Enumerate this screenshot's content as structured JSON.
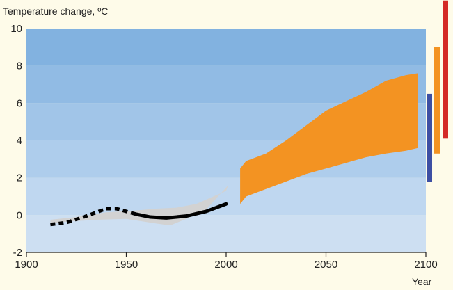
{
  "chart_data": {
    "type": "area",
    "ylabel": "Temperature change, ºC",
    "xlabel": "Year",
    "xlim": [
      1900,
      2100
    ],
    "ylim": [
      -2,
      10
    ],
    "x_ticks": [
      "1900",
      "1950",
      "2000",
      "2050",
      "2100"
    ],
    "y_ticks": [
      "-2",
      "0",
      "2",
      "4",
      "6",
      "8",
      "10"
    ],
    "background_bands": [
      "#cddff2",
      "#bfd7f0",
      "#aecdec",
      "#a1c5e8",
      "#91bbe4",
      "#82b2e0"
    ],
    "series": [
      {
        "style": "observed-uncertainty-band",
        "color": "#d2d2d2",
        "x": [
          1912,
          1925,
          1940,
          1955,
          1965,
          1975,
          1985,
          2000,
          2001,
          1990,
          1980,
          1972,
          1965,
          1950,
          1935,
          1920,
          1912
        ],
        "y": [
          -0.25,
          -0.1,
          0.15,
          0.25,
          0.35,
          0.4,
          0.6,
          1.3,
          1.6,
          0.3,
          -0.2,
          -0.55,
          -0.45,
          -0.2,
          -0.25,
          -0.35,
          -0.45
        ]
      },
      {
        "style": "dotted-observed",
        "color": "#000000",
        "x": [
          1912,
          1920,
          1930,
          1940,
          1945,
          1950,
          1955
        ],
        "y": [
          -0.5,
          -0.4,
          -0.05,
          0.35,
          0.35,
          0.2,
          0.05
        ]
      },
      {
        "style": "solid-observed",
        "color": "#000000",
        "x": [
          1955,
          1962,
          1970,
          1980,
          1990,
          2000
        ],
        "y": [
          0.05,
          -0.1,
          -0.15,
          -0.05,
          0.2,
          0.6
        ]
      },
      {
        "style": "projection-range",
        "color": "#f39322",
        "x_upper": [
          2007,
          2010,
          2020,
          2030,
          2040,
          2050,
          2060,
          2070,
          2080,
          2090,
          2096
        ],
        "y_upper": [
          2.5,
          2.9,
          3.3,
          4.0,
          4.8,
          5.6,
          6.1,
          6.6,
          7.2,
          7.5,
          7.6
        ],
        "x_lower": [
          2007,
          2010,
          2020,
          2030,
          2040,
          2050,
          2060,
          2070,
          2080,
          2090,
          2096
        ],
        "y_lower": [
          0.6,
          1.0,
          1.4,
          1.8,
          2.2,
          2.5,
          2.8,
          3.1,
          3.3,
          3.45,
          3.6
        ]
      }
    ],
    "range_bars": [
      {
        "color": "#3d4fa3",
        "ymin": 1.8,
        "ymax": 6.5
      },
      {
        "color": "#f39322",
        "ymin": 3.3,
        "ymax": 9.0
      },
      {
        "color": "#d42a27",
        "ymin": 4.1,
        "ymax": 11.5
      }
    ]
  }
}
